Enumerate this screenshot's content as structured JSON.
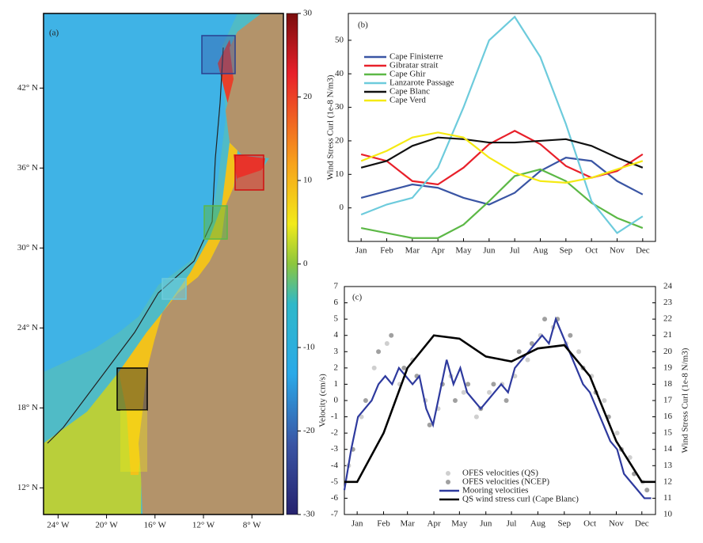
{
  "chart_data": [
    {
      "type": "map",
      "title": "(a)",
      "xlim": [
        -25.2,
        -5.4
      ],
      "ylim": [
        10,
        47.6
      ],
      "xticks": [
        {
          "value": -24,
          "label": "24° W"
        },
        {
          "value": -20,
          "label": "20° W"
        },
        {
          "value": -16,
          "label": "16° W"
        },
        {
          "value": -12,
          "label": "12° W"
        },
        {
          "value": -8,
          "label": "8° W"
        }
      ],
      "yticks": [
        {
          "value": 12,
          "label": "12° N"
        },
        {
          "value": 18,
          "label": "18° N"
        },
        {
          "value": 24,
          "label": "24° N"
        },
        {
          "value": 30,
          "label": "30° N"
        },
        {
          "value": 36,
          "label": "36° N"
        },
        {
          "value": 42,
          "label": "42° N"
        }
      ],
      "clim": [
        -30,
        30
      ],
      "cticks": [
        30,
        20,
        10,
        0,
        -10,
        -20,
        -30
      ]
    },
    {
      "type": "line",
      "title": "(b)",
      "ylabel": "Wind Stress Curl (1e-8 N/m3)",
      "categories": [
        "Jan",
        "Feb",
        "Mar",
        "Apr",
        "May",
        "Jun",
        "Jul",
        "Aug",
        "Sep",
        "Oct",
        "Nov",
        "Dec"
      ],
      "ylim": [
        -10,
        58
      ],
      "yticks": [
        0,
        10,
        20,
        30,
        40,
        50
      ],
      "series": [
        {
          "name": "Cape Finisterre",
          "color": "#3a55a4",
          "values": [
            3,
            5,
            7,
            6,
            3,
            1,
            4.5,
            11,
            15,
            14,
            8,
            4
          ]
        },
        {
          "name": "Gibratar strait",
          "color": "#e8202a",
          "values": [
            16,
            14,
            8,
            7,
            12,
            19,
            23,
            19,
            12.5,
            9,
            11,
            16
          ]
        },
        {
          "name": "Cape Ghir",
          "color": "#5cb846",
          "values": [
            -6,
            -7.5,
            -9,
            -9,
            -5,
            2,
            9.5,
            11.5,
            8,
            1.5,
            -3,
            -6
          ]
        },
        {
          "name": "Lanzarote Passage",
          "color": "#6dcbdc",
          "values": [
            -2,
            1,
            3,
            12,
            30,
            50,
            57,
            45,
            25,
            2,
            -7.5,
            -2.5
          ]
        },
        {
          "name": "Cape Blanc",
          "color": "#111111",
          "values": [
            12,
            14,
            18.5,
            21,
            20.5,
            19.5,
            19.5,
            20,
            20.5,
            18.5,
            15,
            12
          ]
        },
        {
          "name": "Cape Verd",
          "color": "#f5ea14",
          "values": [
            14,
            17,
            21,
            22.5,
            21,
            15,
            10.5,
            8,
            7.5,
            9,
            11.5,
            14
          ]
        }
      ]
    },
    {
      "type": "dual",
      "title": "(c)",
      "ylabel": "Velocity (cm/s)",
      "y2label": "Wind Stress Curl (1e-8 N/m3)",
      "xlim": [
        0,
        365
      ],
      "xticks": [
        {
          "value": 15,
          "label": "Jan"
        },
        {
          "value": 46,
          "label": "Feb"
        },
        {
          "value": 74,
          "label": "Mar"
        },
        {
          "value": 105,
          "label": "Apr"
        },
        {
          "value": 135,
          "label": "May"
        },
        {
          "value": 166,
          "label": "Jun"
        },
        {
          "value": 196,
          "label": "Jul"
        },
        {
          "value": 227,
          "label": "Aug"
        },
        {
          "value": 258,
          "label": "Sep"
        },
        {
          "value": 288,
          "label": "Oct"
        },
        {
          "value": 319,
          "label": "Nov"
        },
        {
          "value": 349,
          "label": "Dec"
        }
      ],
      "ylim": [
        -7,
        7
      ],
      "yticks": [
        -7,
        -6,
        -5,
        -4,
        -3,
        -2,
        -1,
        0,
        1,
        2,
        3,
        4,
        5,
        6,
        7
      ],
      "y2lim": [
        10,
        24
      ],
      "y2ticks": [
        10,
        11,
        12,
        13,
        14,
        15,
        16,
        17,
        18,
        19,
        20,
        21,
        22,
        23,
        24
      ],
      "series": [
        {
          "name": "OFES velocities (QS)",
          "kind": "scatter",
          "color": "#cfcfcf",
          "x": [
            5,
            20,
            35,
            50,
            65,
            80,
            95,
            110,
            125,
            140,
            155,
            170,
            185,
            200,
            215,
            230,
            245,
            260,
            275,
            290,
            305,
            320,
            335,
            350
          ],
          "values": [
            -4,
            -1,
            2,
            3.5,
            1,
            2.5,
            0,
            -0.5,
            1.5,
            0.5,
            -1,
            0.5,
            1,
            1.5,
            2.5,
            4,
            4.5,
            3.5,
            3,
            1.5,
            0,
            -2,
            -3.5,
            -5
          ]
        },
        {
          "name": "OFES velocities (NCEP)",
          "kind": "scatter",
          "color": "#a0a0a0",
          "x": [
            10,
            25,
            40,
            55,
            70,
            85,
            100,
            115,
            130,
            145,
            160,
            175,
            190,
            205,
            220,
            235,
            250,
            265,
            280,
            295,
            310,
            325,
            340,
            355
          ],
          "values": [
            -3,
            0,
            3,
            4,
            2,
            1.5,
            -1.5,
            1,
            0,
            1,
            -0.5,
            1,
            0,
            3,
            3.5,
            5,
            5,
            4,
            2,
            0.5,
            -1,
            -3,
            -4.5,
            -5.5
          ]
        },
        {
          "name": "Mooring velocities",
          "kind": "line",
          "color": "#2e3a9e",
          "x": [
            0,
            8,
            16,
            24,
            32,
            40,
            48,
            56,
            64,
            72,
            80,
            88,
            96,
            104,
            112,
            120,
            128,
            136,
            144,
            152,
            160,
            168,
            176,
            184,
            192,
            200,
            208,
            216,
            224,
            232,
            240,
            248,
            256,
            264,
            272,
            280,
            288,
            296,
            304,
            312,
            320,
            328,
            336,
            344,
            352,
            360
          ],
          "values": [
            -5.5,
            -3,
            -1,
            -0.5,
            0,
            1,
            1.5,
            1,
            2,
            1.5,
            1,
            1.5,
            -0.5,
            -1.5,
            0.5,
            2.5,
            1,
            2,
            0.5,
            0,
            -0.5,
            0,
            0.5,
            1,
            0.5,
            2,
            2.5,
            3,
            3.5,
            4,
            3.5,
            5,
            4,
            3,
            2,
            1,
            0.5,
            -0.5,
            -1.5,
            -2.5,
            -3,
            -4.5,
            -5,
            -5.5,
            -6,
            -6
          ]
        },
        {
          "name": "QS wind stress curl (Cape Blanc)",
          "kind": "line",
          "color": "#000000",
          "axis": "y2",
          "x": [
            0,
            15,
            46,
            74,
            105,
            135,
            166,
            196,
            227,
            258,
            288,
            319,
            349,
            365
          ],
          "values": [
            12,
            12,
            15,
            19,
            21,
            20.8,
            19.7,
            19.4,
            20.2,
            20.4,
            18.5,
            14.5,
            12,
            12
          ]
        }
      ]
    }
  ]
}
